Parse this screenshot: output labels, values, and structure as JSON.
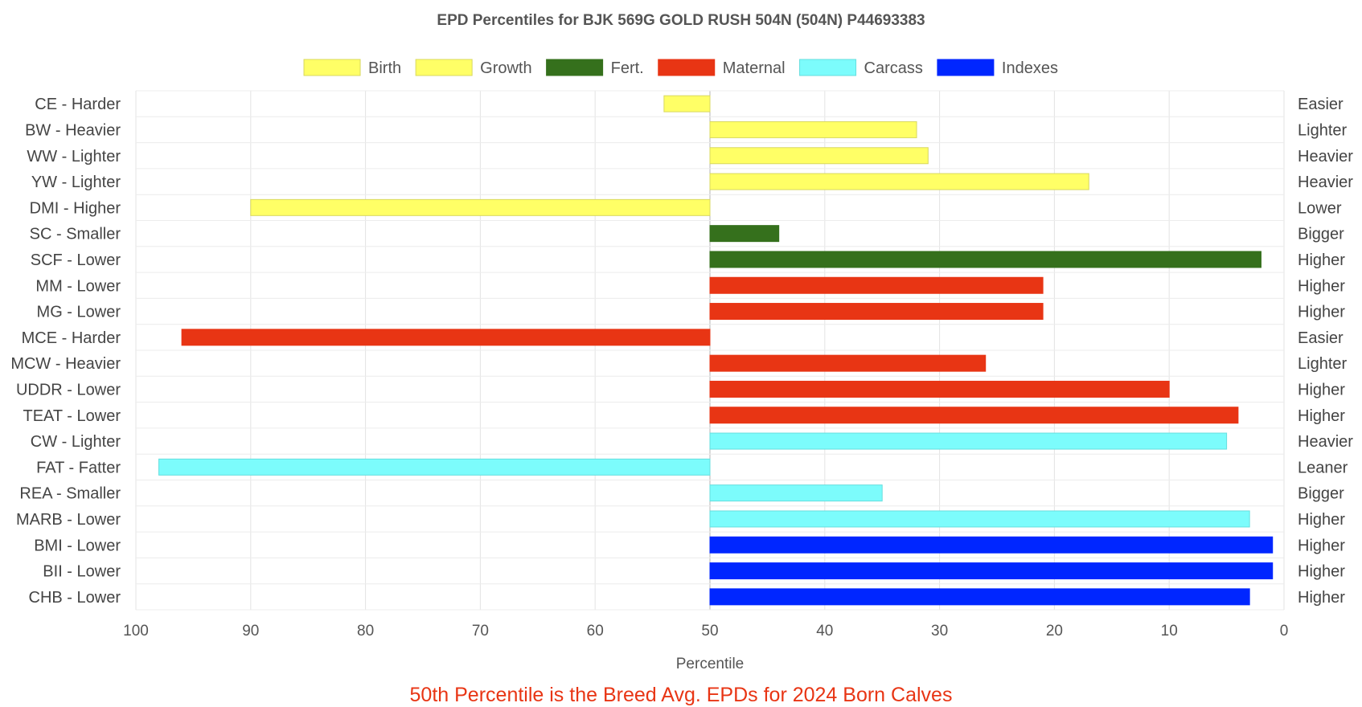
{
  "chart_data": {
    "type": "bar",
    "orientation": "horizontal",
    "title": "EPD Percentiles for BJK 569G GOLD RUSH 504N (504N) P44693383",
    "xlabel": "Percentile",
    "xlim": [
      100,
      0
    ],
    "x_reversed": true,
    "baseline": 50,
    "x_ticks": [
      100,
      90,
      80,
      70,
      60,
      50,
      40,
      30,
      20,
      10,
      0
    ],
    "grid": true,
    "legend_position": "top-center",
    "legend": [
      {
        "name": "Birth",
        "color": "#ffff66"
      },
      {
        "name": "Growth",
        "color": "#ffff66"
      },
      {
        "name": "Fert.",
        "color": "#35701c"
      },
      {
        "name": "Maternal",
        "color": "#e83514"
      },
      {
        "name": "Carcass",
        "color": "#7cfcfc"
      },
      {
        "name": "Indexes",
        "color": "#0026ff"
      }
    ],
    "categories": [
      "CE - Harder",
      "BW - Heavier",
      "WW - Lighter",
      "YW - Lighter",
      "DMI - Higher",
      "SC - Smaller",
      "SCF - Lower",
      "MM - Lower",
      "MG - Lower",
      "MCE - Harder",
      "MCW - Heavier",
      "UDDR - Lower",
      "TEAT - Lower",
      "CW - Lighter",
      "FAT - Fatter",
      "REA - Smaller",
      "MARB - Lower",
      "BMI - Lower",
      "BII - Lower",
      "CHB - Lower"
    ],
    "right_labels": [
      "Easier",
      "Lighter",
      "Heavier",
      "Heavier",
      "Lower",
      "Bigger",
      "Higher",
      "Higher",
      "Higher",
      "Easier",
      "Lighter",
      "Higher",
      "Higher",
      "Heavier",
      "Leaner",
      "Bigger",
      "Higher",
      "Higher",
      "Higher",
      "Higher"
    ],
    "values": [
      54,
      32,
      31,
      17,
      90,
      44,
      2,
      21,
      21,
      96,
      26,
      10,
      4,
      5,
      98,
      35,
      3,
      1,
      1,
      3
    ],
    "bar_groups": [
      "Birth",
      "Birth",
      "Growth",
      "Growth",
      "Growth",
      "Fert.",
      "Fert.",
      "Maternal",
      "Maternal",
      "Maternal",
      "Maternal",
      "Maternal",
      "Maternal",
      "Carcass",
      "Carcass",
      "Carcass",
      "Carcass",
      "Indexes",
      "Indexes",
      "Indexes"
    ],
    "footnote": "50th Percentile is the Breed Avg. EPDs for 2024 Born Calves",
    "footnote_color": "#e83514"
  }
}
